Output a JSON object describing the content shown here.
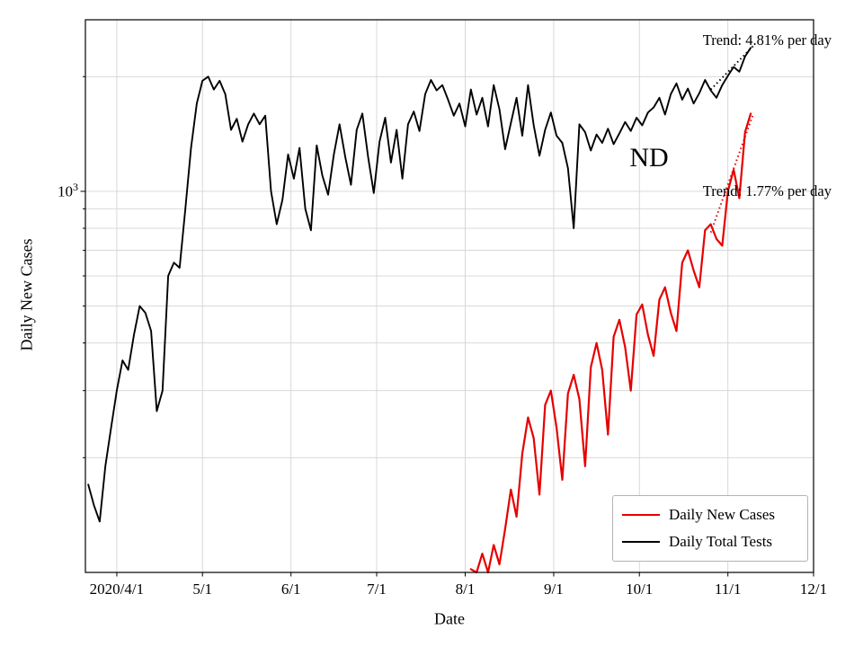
{
  "figure": {
    "background": "#ffffff"
  },
  "annotations": {
    "trend_top": "Trend: 4.81% per day",
    "trend_mid": "Trend: 1.77% per day",
    "state_label": "ND"
  },
  "y_tick": {
    "base": "10",
    "exponent": "3"
  },
  "chart_data": {
    "type": "line",
    "title": "",
    "xlabel": "Date",
    "ylabel": "Daily New Cases",
    "y_scale": "log",
    "ylim": [
      100,
      2820
    ],
    "grid": true,
    "grid_color": "#d4d4d4",
    "legend_position": "lower right",
    "x_unit": "days since 2020-03-22",
    "x_axis_range_days": [
      -1,
      254
    ],
    "x_ticks": [
      {
        "label": "2020/4/1",
        "day": 10
      },
      {
        "label": "5/1",
        "day": 40
      },
      {
        "label": "6/1",
        "day": 71
      },
      {
        "label": "7/1",
        "day": 101
      },
      {
        "label": "8/1",
        "day": 132
      },
      {
        "label": "9/1",
        "day": 163
      },
      {
        "label": "10/1",
        "day": 193
      },
      {
        "label": "11/1",
        "day": 224
      },
      {
        "label": "12/1",
        "day": 254
      }
    ],
    "y_ticks": [
      {
        "label": "10^3",
        "value": 1000
      }
    ],
    "y_grid_values": [
      200,
      300,
      400,
      500,
      600,
      700,
      800,
      900,
      1000,
      2000
    ],
    "y_minor_tick_values": [
      200,
      300,
      400,
      500,
      600,
      700,
      800,
      900,
      2000
    ],
    "y_major_tick_values": [
      1000
    ],
    "series": [
      {
        "name": "Daily New Cases",
        "color": "#e60000",
        "width": 2.2,
        "start_day": 134,
        "step_days": 2,
        "values": [
          102,
          98,
          112,
          100,
          118,
          105,
          130,
          165,
          140,
          205,
          255,
          225,
          160,
          275,
          300,
          240,
          175,
          295,
          330,
          285,
          190,
          345,
          400,
          340,
          230,
          415,
          460,
          390,
          300,
          475,
          505,
          420,
          370,
          520,
          560,
          480,
          430,
          650,
          700,
          620,
          560,
          790,
          820,
          750,
          720,
          1000,
          1140,
          960,
          1430,
          1600
        ]
      },
      {
        "name": "Daily Total Tests",
        "color": "#000000",
        "width": 1.9,
        "start_day": 0,
        "step_days": 2,
        "values": [
          170,
          150,
          136,
          190,
          240,
          300,
          360,
          340,
          420,
          500,
          480,
          430,
          265,
          300,
          600,
          650,
          630,
          900,
          1300,
          1700,
          1950,
          2000,
          1850,
          1950,
          1800,
          1450,
          1550,
          1350,
          1500,
          1600,
          1500,
          1580,
          1000,
          820,
          950,
          1250,
          1080,
          1300,
          900,
          790,
          1320,
          1100,
          980,
          1250,
          1500,
          1230,
          1040,
          1450,
          1600,
          1230,
          990,
          1350,
          1560,
          1190,
          1450,
          1080,
          1500,
          1620,
          1440,
          1800,
          1960,
          1840,
          1900,
          1740,
          1580,
          1700,
          1480,
          1850,
          1590,
          1760,
          1480,
          1900,
          1640,
          1290,
          1510,
          1760,
          1400,
          1900,
          1490,
          1240,
          1450,
          1610,
          1400,
          1340,
          1150,
          800,
          1500,
          1430,
          1280,
          1410,
          1340,
          1460,
          1330,
          1420,
          1520,
          1440,
          1560,
          1490,
          1610,
          1660,
          1760,
          1590,
          1800,
          1920,
          1740,
          1860,
          1700,
          1810,
          1960,
          1840,
          1760,
          1900,
          2010,
          2120,
          2060,
          2260,
          2380
        ]
      }
    ],
    "trend_lines": [
      {
        "series": "Daily New Cases",
        "label": "Trend: 4.81% per day",
        "rate_pct_per_day": 4.81,
        "start_day": 218,
        "end_day": 233,
        "start_value": 780,
        "color": "#e60000"
      },
      {
        "series": "Daily Total Tests",
        "label": "Trend: 1.77% per day",
        "rate_pct_per_day": 1.77,
        "start_day": 218,
        "end_day": 233,
        "start_value": 1850,
        "color": "#000000"
      }
    ]
  }
}
